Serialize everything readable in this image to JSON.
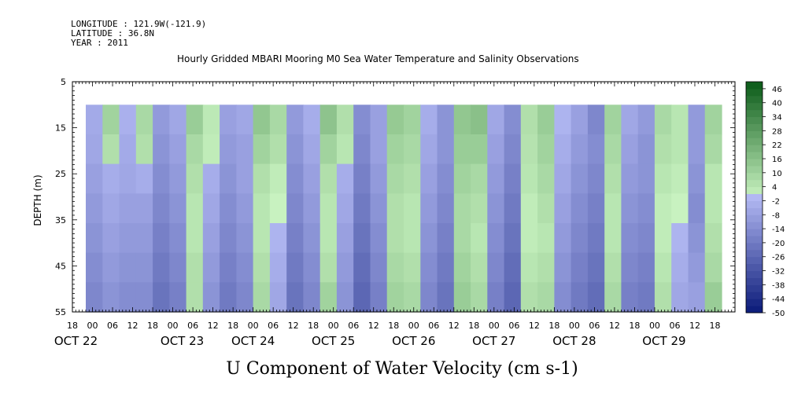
{
  "header": {
    "longitude": "LONGITUDE : 121.9W(-121.9)",
    "latitude": "LATITUDE : 36.8N",
    "year": "YEAR : 2011"
  },
  "chart_data": {
    "type": "heatmap",
    "title": "Hourly Gridded MBARI Mooring M0 Sea Water Temperature and Salinity Observations",
    "xlabel": "U Component of Water Velocity (cm s-1)",
    "ylabel": "DEPTH (m)",
    "ylim": [
      55,
      5
    ],
    "y_ticks": [
      "5",
      "15",
      "25",
      "35",
      "45",
      "55"
    ],
    "x_hour_ticks": [
      "18",
      "00",
      "06",
      "12",
      "18",
      "00",
      "06",
      "12",
      "18",
      "00",
      "06",
      "12",
      "18",
      "00",
      "06",
      "12",
      "18",
      "00",
      "06",
      "12",
      "18",
      "00",
      "06",
      "12",
      "18",
      "00",
      "06",
      "12",
      "18",
      "00",
      "06",
      "12",
      "18"
    ],
    "x_date_labels": [
      "OCT 22",
      "OCT 23",
      "OCT 24",
      "OCT 25",
      "OCT 26",
      "OCT 27",
      "OCT 28",
      "OCT 29"
    ],
    "colorbar_labels": [
      "46",
      "40",
      "34",
      "28",
      "22",
      "16",
      "10",
      "4",
      "-2",
      "-8",
      "-14",
      "-20",
      "-26",
      "-32",
      "-38",
      "-44",
      "-50"
    ],
    "colorbar_range": [
      -50,
      49
    ],
    "colormap": {
      "negative_low": "#0a1a78",
      "negative_high": "#b4baf4",
      "positive_low": "#c8f2c0",
      "positive_high": "#0a5a18"
    },
    "data_depth_range": [
      10,
      55
    ],
    "data_start_hour": 4,
    "data_end_hour": 194,
    "values_cm_s": [
      [
        -5,
        10,
        -3,
        8,
        -10,
        -6,
        12,
        3,
        -8,
        -6,
        14,
        8,
        -10,
        -4,
        15,
        6,
        -14,
        -8,
        13,
        10,
        -4,
        -12,
        14,
        16,
        -6,
        -14,
        6,
        12,
        -2,
        -8,
        -16,
        10,
        -6,
        -10,
        8,
        4,
        -10,
        10
      ],
      [
        -6,
        6,
        -5,
        6,
        -12,
        -8,
        8,
        2,
        -10,
        -8,
        10,
        6,
        -12,
        -6,
        10,
        4,
        -16,
        -8,
        10,
        8,
        -6,
        -12,
        12,
        12,
        -8,
        -16,
        5,
        10,
        -4,
        -10,
        -14,
        8,
        -8,
        -12,
        6,
        4,
        -10,
        8
      ],
      [
        -8,
        -4,
        -6,
        -4,
        -14,
        -10,
        6,
        -4,
        -12,
        -8,
        6,
        2,
        -14,
        -8,
        6,
        -4,
        -18,
        -10,
        8,
        6,
        -8,
        -14,
        10,
        8,
        -10,
        -18,
        4,
        8,
        -6,
        -12,
        -16,
        6,
        -10,
        -12,
        4,
        2,
        -12,
        4
      ],
      [
        -10,
        -6,
        -8,
        -8,
        -16,
        -12,
        4,
        -6,
        -14,
        -10,
        4,
        0,
        -16,
        -10,
        4,
        -6,
        -20,
        -12,
        6,
        4,
        -10,
        -16,
        8,
        6,
        -12,
        -20,
        2,
        6,
        -8,
        -14,
        -18,
        4,
        -12,
        -14,
        2,
        0,
        -14,
        4
      ],
      [
        -12,
        -8,
        -10,
        -10,
        -18,
        -14,
        4,
        -8,
        -16,
        -12,
        4,
        -2,
        -18,
        -12,
        4,
        -8,
        -22,
        -14,
        6,
        4,
        -12,
        -18,
        8,
        4,
        -14,
        -22,
        2,
        4,
        -10,
        -16,
        -20,
        4,
        -14,
        -16,
        2,
        -2,
        -12,
        6
      ],
      [
        -14,
        -10,
        -12,
        -12,
        -20,
        -16,
        6,
        -10,
        -18,
        -14,
        6,
        -4,
        -20,
        -14,
        6,
        -10,
        -24,
        -16,
        8,
        6,
        -14,
        -20,
        10,
        6,
        -16,
        -24,
        4,
        6,
        -12,
        -18,
        -22,
        6,
        -16,
        -18,
        4,
        -4,
        -10,
        8
      ],
      [
        -16,
        -12,
        -14,
        -14,
        -22,
        -18,
        6,
        -12,
        -20,
        -16,
        8,
        -6,
        -22,
        -16,
        10,
        -12,
        -26,
        -18,
        10,
        8,
        -16,
        -22,
        12,
        8,
        -18,
        -26,
        6,
        8,
        -14,
        -20,
        -24,
        8,
        -18,
        -20,
        6,
        -6,
        -8,
        12
      ]
    ]
  }
}
